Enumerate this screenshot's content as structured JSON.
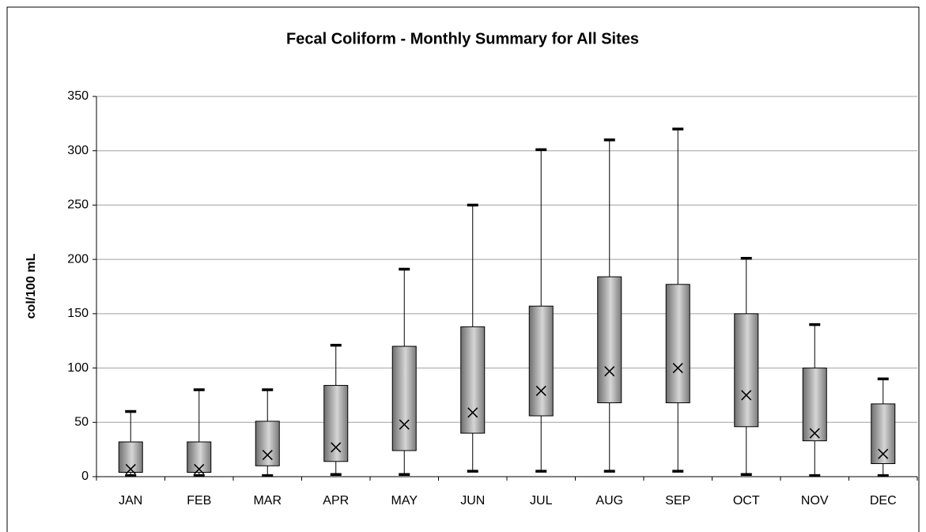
{
  "chart_data": {
    "type": "box",
    "title": "Fecal Coliform - Monthly Summary for All Sites",
    "y_label": "col/100 mL",
    "categories": [
      "JAN",
      "FEB",
      "MAR",
      "APR",
      "MAY",
      "JUN",
      "JUL",
      "AUG",
      "SEP",
      "OCT",
      "NOV",
      "DEC"
    ],
    "min": [
      1,
      1,
      1,
      2,
      2,
      5,
      5,
      5,
      5,
      2,
      1,
      1
    ],
    "q1": [
      4,
      4,
      10,
      14,
      24,
      40,
      56,
      68,
      68,
      46,
      33,
      12
    ],
    "median": [
      7,
      7,
      20,
      27,
      48,
      59,
      79,
      97,
      100,
      75,
      40,
      21
    ],
    "q3": [
      32,
      32,
      51,
      84,
      120,
      138,
      157,
      184,
      177,
      150,
      100,
      67
    ],
    "max": [
      60,
      80,
      80,
      121,
      191,
      250,
      301,
      310,
      320,
      201,
      140,
      90
    ],
    "color": "#999999",
    "ylim": [
      0,
      350
    ],
    "yticks": [
      0,
      50,
      100,
      150,
      200,
      250,
      300,
      350
    ],
    "grid": true
  }
}
